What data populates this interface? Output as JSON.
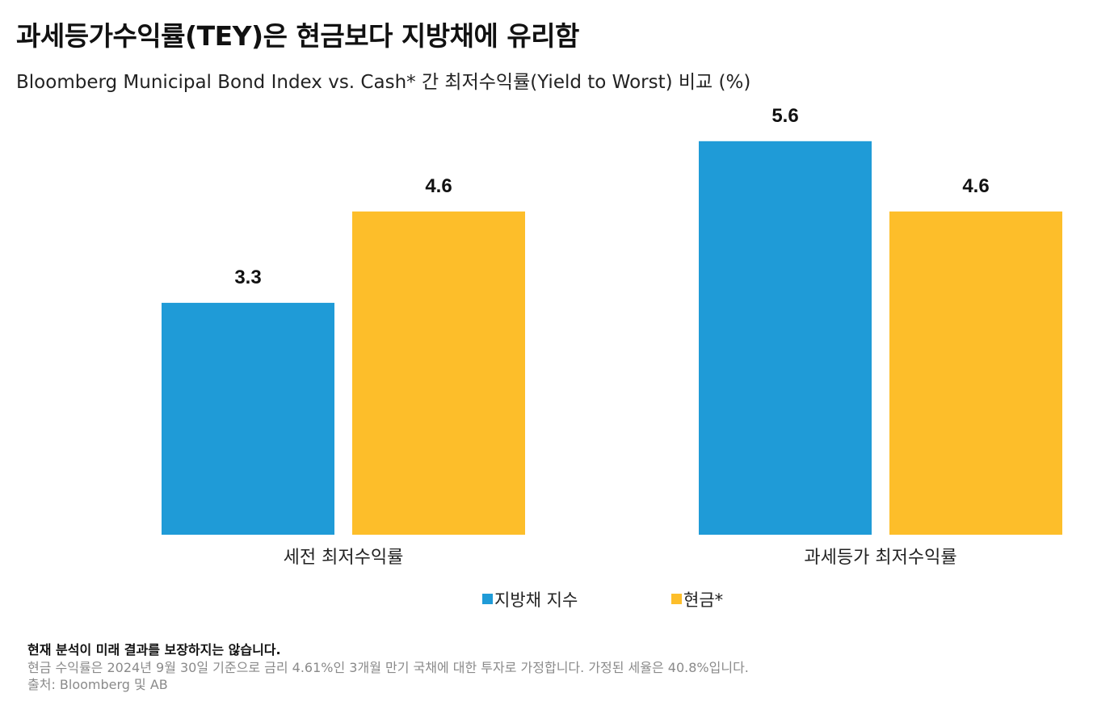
{
  "header": {
    "title": "과세등가수익률(TEY)은 현금보다 지방채에 유리함",
    "subtitle": "Bloomberg Municipal Bond Index vs. Cash* 간 최저수익률(Yield to Worst) 비교 (%)"
  },
  "chart_data": {
    "type": "bar",
    "categories": [
      "세전 최저수익률",
      "과세등가 최저수익률"
    ],
    "series": [
      {
        "name": "지방채 지수",
        "values": [
          3.3,
          5.6
        ],
        "color": "#1F9BD7"
      },
      {
        "name": "현금*",
        "values": [
          4.6,
          4.6
        ],
        "color": "#FDBE2A"
      }
    ],
    "data_labels": true,
    "ylim": [
      0,
      5.6
    ],
    "grid": false,
    "legend": "bottom-center",
    "xlabel": "",
    "ylabel": ""
  },
  "footnotes": {
    "disclaimer": "현재 분석이 미래 결과를 보장하지는 않습니다.",
    "note": "현금 수익률은 2024년 9월 30일 기준으로 금리 4.61%인 3개월 만기 국채에 대한 투자로 가정합니다. 가정된 세율은 40.8%입니다.",
    "source": "출처: Bloomberg 및 AB"
  }
}
